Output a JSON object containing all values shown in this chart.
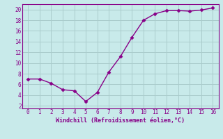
{
  "x": [
    0,
    1,
    2,
    3,
    4,
    5,
    6,
    7,
    8,
    9,
    10,
    11,
    12,
    13,
    14,
    15,
    16
  ],
  "y": [
    7.0,
    7.0,
    6.2,
    5.0,
    4.8,
    2.8,
    4.5,
    8.3,
    11.2,
    14.8,
    18.0,
    19.2,
    19.8,
    19.8,
    19.7,
    19.9,
    20.3
  ],
  "line_color": "#880088",
  "marker": "D",
  "marker_size": 2.5,
  "bg_color": "#c8eaea",
  "grid_color": "#aacccc",
  "xlabel": "Windchill (Refroidissement éolien,°C)",
  "xlabel_color": "#880088",
  "tick_color": "#880088",
  "spine_color": "#880088",
  "xlim": [
    -0.5,
    16.5
  ],
  "ylim": [
    1.5,
    21.0
  ],
  "yticks": [
    2,
    4,
    6,
    8,
    10,
    12,
    14,
    16,
    18,
    20
  ],
  "xticks": [
    0,
    1,
    2,
    3,
    4,
    5,
    6,
    7,
    8,
    9,
    10,
    11,
    12,
    13,
    14,
    15,
    16
  ],
  "tick_labelsize": 5.5,
  "xlabel_fontsize": 6.0,
  "linewidth": 1.0
}
